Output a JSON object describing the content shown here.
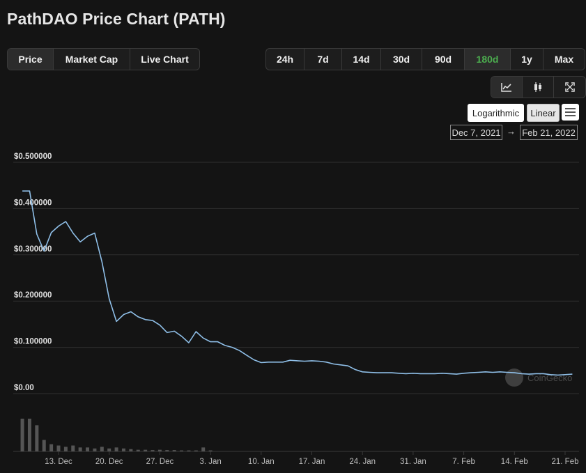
{
  "title": "PathDAO Price Chart (PATH)",
  "metric_tabs": [
    {
      "label": "Price",
      "active": true
    },
    {
      "label": "Market Cap",
      "active": false
    },
    {
      "label": "Live Chart",
      "active": false
    }
  ],
  "range_tabs": [
    {
      "label": "24h",
      "active": false
    },
    {
      "label": "7d",
      "active": false
    },
    {
      "label": "14d",
      "active": false
    },
    {
      "label": "30d",
      "active": false
    },
    {
      "label": "90d",
      "active": false
    },
    {
      "label": "180d",
      "active": true
    },
    {
      "label": "1y",
      "active": false
    },
    {
      "label": "Max",
      "active": false
    }
  ],
  "view_icons": [
    "line-chart-icon",
    "candlestick-icon",
    "fullscreen-icon"
  ],
  "scale": {
    "log_label": "Logarithmic",
    "linear_label": "Linear",
    "selected": "Linear"
  },
  "date_range": {
    "from": "Dec 7, 2021",
    "arrow": "→",
    "to": "Feb 21, 2022"
  },
  "watermark": "CoinGecko",
  "colors": {
    "line": "#8fbfe8",
    "accent_green": "#4cae4f",
    "grid": "#2f2f2f",
    "volume": "#555555"
  },
  "chart_data": {
    "type": "line",
    "y_tick_labels": [
      "$0.500000",
      "$0.400000",
      "$0.300000",
      "$0.200000",
      "$0.100000",
      "$0.00"
    ],
    "y_ticks": [
      0.5,
      0.4,
      0.3,
      0.2,
      0.1,
      0
    ],
    "ylim": [
      0,
      0.5
    ],
    "x_tick_labels": [
      "13. Dec",
      "20. Dec",
      "27. Dec",
      "3. Jan",
      "10. Jan",
      "17. Jan",
      "24. Jan",
      "31. Jan",
      "7. Feb",
      "14. Feb",
      "21. Feb"
    ],
    "x_tick_dates": [
      "2021-12-13",
      "2021-12-20",
      "2021-12-27",
      "2022-01-03",
      "2022-01-10",
      "2022-01-17",
      "2022-01-24",
      "2022-01-31",
      "2022-02-07",
      "2022-02-14",
      "2022-02-21"
    ],
    "series": [
      {
        "dates": [
          "2021-12-08",
          "2021-12-09",
          "2021-12-10",
          "2021-12-11",
          "2021-12-12",
          "2021-12-13",
          "2021-12-14",
          "2021-12-15",
          "2021-12-16",
          "2021-12-17",
          "2021-12-18",
          "2021-12-19",
          "2021-12-20",
          "2021-12-21",
          "2021-12-22",
          "2021-12-23",
          "2021-12-24",
          "2021-12-25",
          "2021-12-26",
          "2021-12-27",
          "2021-12-28",
          "2021-12-29",
          "2021-12-30",
          "2021-12-31",
          "2022-01-01",
          "2022-01-02",
          "2022-01-03",
          "2022-01-04",
          "2022-01-05",
          "2022-01-06",
          "2022-01-07",
          "2022-01-08",
          "2022-01-09",
          "2022-01-10",
          "2022-01-11",
          "2022-01-12",
          "2022-01-13",
          "2022-01-14",
          "2022-01-15",
          "2022-01-16",
          "2022-01-17",
          "2022-01-18",
          "2022-01-19",
          "2022-01-20",
          "2022-01-21",
          "2022-01-22",
          "2022-01-23",
          "2022-01-24",
          "2022-01-25",
          "2022-01-26",
          "2022-01-27",
          "2022-01-28",
          "2022-01-29",
          "2022-01-30",
          "2022-01-31",
          "2022-02-01",
          "2022-02-02",
          "2022-02-03",
          "2022-02-04",
          "2022-02-05",
          "2022-02-06",
          "2022-02-07",
          "2022-02-08",
          "2022-02-09",
          "2022-02-10",
          "2022-02-11",
          "2022-02-12",
          "2022-02-13",
          "2022-02-14",
          "2022-02-15",
          "2022-02-16",
          "2022-02-17",
          "2022-02-18",
          "2022-02-19",
          "2022-02-20",
          "2022-02-21",
          "2022-02-22"
        ],
        "values": [
          0.438,
          0.438,
          0.345,
          0.308,
          0.348,
          0.362,
          0.372,
          0.347,
          0.328,
          0.34,
          0.347,
          0.285,
          0.205,
          0.156,
          0.171,
          0.177,
          0.166,
          0.16,
          0.158,
          0.148,
          0.132,
          0.135,
          0.124,
          0.11,
          0.134,
          0.12,
          0.112,
          0.112,
          0.104,
          0.1,
          0.093,
          0.083,
          0.073,
          0.067,
          0.068,
          0.068,
          0.068,
          0.072,
          0.071,
          0.07,
          0.071,
          0.07,
          0.068,
          0.064,
          0.062,
          0.06,
          0.052,
          0.047,
          0.046,
          0.045,
          0.045,
          0.045,
          0.044,
          0.043,
          0.044,
          0.043,
          0.043,
          0.043,
          0.044,
          0.043,
          0.042,
          0.044,
          0.045,
          0.046,
          0.047,
          0.046,
          0.047,
          0.046,
          0.045,
          0.043,
          0.042,
          0.043,
          0.043,
          0.041,
          0.04,
          0.041,
          0.042
        ]
      }
    ],
    "volume": {
      "dates": [
        "2021-12-08",
        "2021-12-09",
        "2021-12-10",
        "2021-12-11",
        "2021-12-12",
        "2021-12-13",
        "2021-12-14",
        "2021-12-15",
        "2021-12-16",
        "2021-12-17",
        "2021-12-18",
        "2021-12-19",
        "2021-12-20",
        "2021-12-21",
        "2021-12-22",
        "2021-12-23",
        "2021-12-24",
        "2021-12-25",
        "2021-12-26",
        "2021-12-27",
        "2021-12-28",
        "2021-12-29",
        "2021-12-30",
        "2021-12-31",
        "2022-01-01",
        "2022-01-02",
        "2022-01-03"
      ],
      "values": [
        1.0,
        1.0,
        0.8,
        0.35,
        0.22,
        0.18,
        0.14,
        0.18,
        0.12,
        0.12,
        0.09,
        0.14,
        0.09,
        0.12,
        0.09,
        0.07,
        0.05,
        0.05,
        0.04,
        0.05,
        0.04,
        0.04,
        0.03,
        0.03,
        0.03,
        0.12,
        0.03
      ]
    }
  }
}
